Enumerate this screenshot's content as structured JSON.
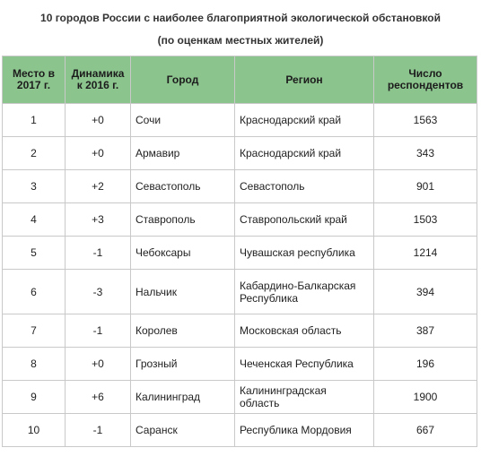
{
  "title": "10 городов России с наиболее благоприятной экологической обстановкой",
  "subtitle": "(по оценкам местных жителей)",
  "columns": [
    "Место в 2017 г.",
    "Динамика к 2016 г.",
    "Город",
    "Регион",
    "Число респондентов"
  ],
  "rows": [
    {
      "place": "1",
      "change": "+0",
      "city": "Сочи",
      "region": "Краснодарский край",
      "respondents": "1563"
    },
    {
      "place": "2",
      "change": "+0",
      "city": "Армавир",
      "region": "Краснодарский край",
      "respondents": "343"
    },
    {
      "place": "3",
      "change": "+2",
      "city": "Севастополь",
      "region": "Севастополь",
      "respondents": "901"
    },
    {
      "place": "4",
      "change": "+3",
      "city": "Ставрополь",
      "region": "Ставропольский край",
      "respondents": "1503"
    },
    {
      "place": "5",
      "change": "-1",
      "city": "Чебоксары",
      "region": "Чувашская республика",
      "respondents": "1214"
    },
    {
      "place": "6",
      "change": "-3",
      "city": "Нальчик",
      "region": "Кабардино-Балкарская Республика",
      "respondents": "394"
    },
    {
      "place": "7",
      "change": "-1",
      "city": "Королев",
      "region": "Московская область",
      "respondents": "387"
    },
    {
      "place": "8",
      "change": "+0",
      "city": "Грозный",
      "region": "Чеченская Республика",
      "respondents": "196"
    },
    {
      "place": "9",
      "change": "+6",
      "city": "Калининград",
      "region": "Калининградская область",
      "respondents": "1900"
    },
    {
      "place": "10",
      "change": "-1",
      "city": "Саранск",
      "region": "Республика Мордовия",
      "respondents": "667"
    }
  ],
  "colors": {
    "header_bg": "#8cc48e",
    "border": "#c9c9c9"
  }
}
